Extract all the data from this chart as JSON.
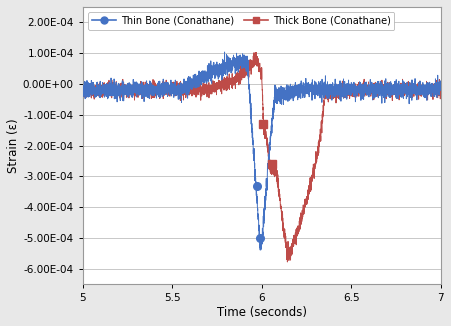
{
  "xlabel": "Time (seconds)",
  "ylabel": "Strain (ε)",
  "xlim": [
    5,
    7
  ],
  "ylim": [
    -0.00065,
    0.00025
  ],
  "yticks": [
    -0.0006,
    -0.0005,
    -0.0004,
    -0.0003,
    -0.0002,
    -0.0001,
    0.0,
    0.0001,
    0.0002
  ],
  "xticks": [
    5,
    5.5,
    6,
    6.5,
    7
  ],
  "thin_color": "#4472C4",
  "thick_color": "#BE4B48",
  "thin_label": "Thin Bone (Conathane)",
  "thick_label": "Thick Bone (Conathane)",
  "background_color": "#E8E8E8",
  "plot_background": "#FFFFFF",
  "noise_thin": 1.3e-05,
  "noise_thick": 1.1e-05,
  "seed": 7
}
